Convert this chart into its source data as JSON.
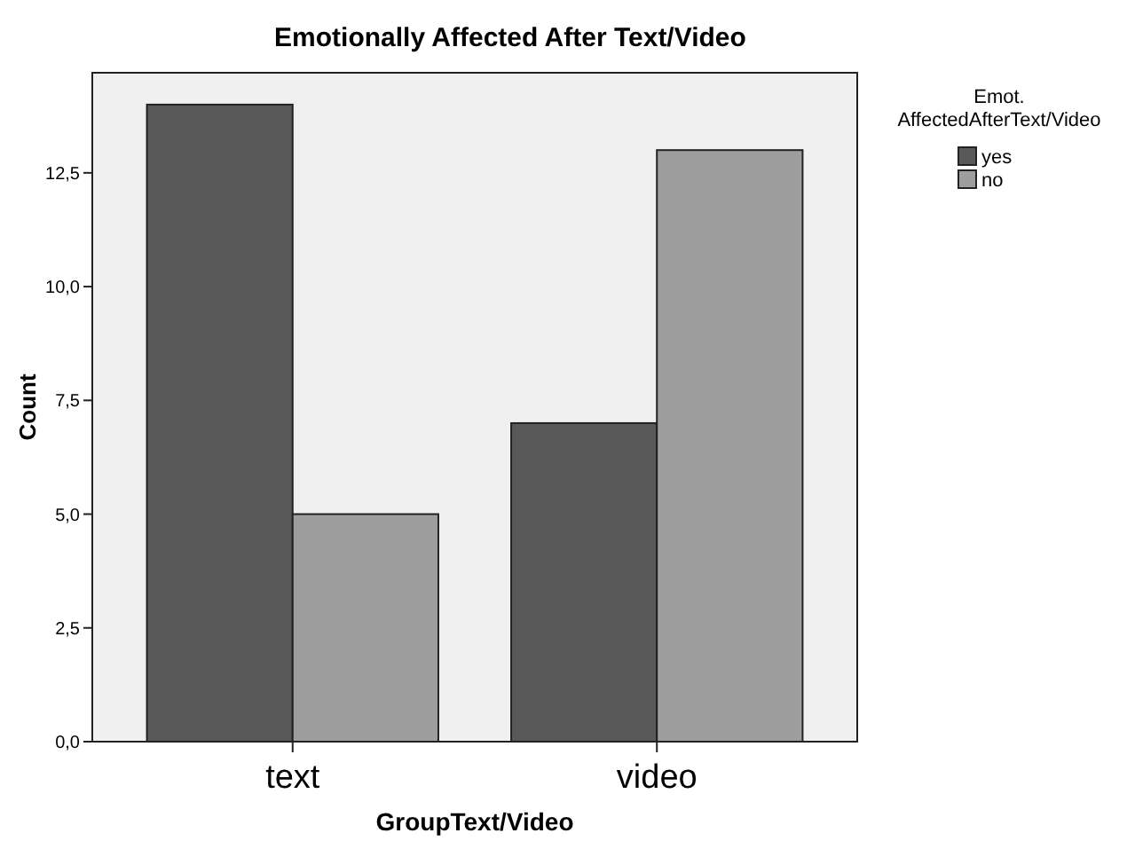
{
  "chart_data": {
    "type": "bar",
    "title": "Emotionally Affected After Text/Video",
    "xlabel": "GroupText/Video",
    "ylabel": "Count",
    "legend_title": "Emot. AffectedAfterText/Video",
    "categories": [
      "text",
      "video"
    ],
    "series": [
      {
        "name": "yes",
        "color": "#595959",
        "values": [
          14,
          7
        ]
      },
      {
        "name": "no",
        "color": "#9e9e9e",
        "values": [
          5,
          13
        ]
      }
    ],
    "ylim": [
      0,
      14.7
    ],
    "yticks": [
      {
        "value": 0,
        "label": "0,0"
      },
      {
        "value": 2.5,
        "label": "2,5"
      },
      {
        "value": 5,
        "label": "5,0"
      },
      {
        "value": 7.5,
        "label": "7,5"
      },
      {
        "value": 10,
        "label": "10,0"
      },
      {
        "value": 12.5,
        "label": "12,5"
      }
    ],
    "grid": false,
    "legend": "top right"
  }
}
